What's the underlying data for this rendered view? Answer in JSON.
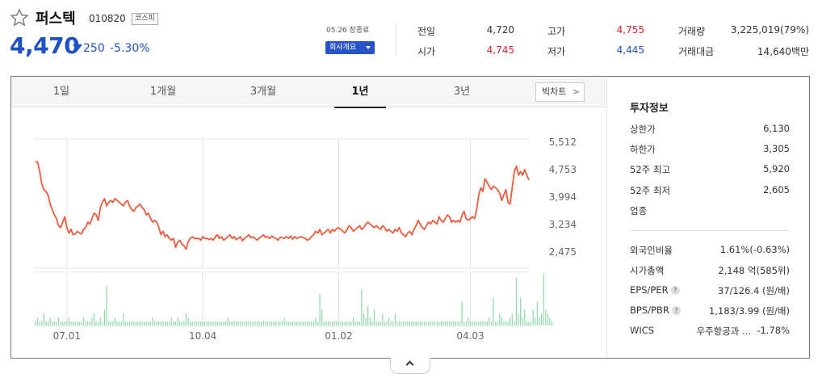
{
  "header": {
    "name": "퍼스텍",
    "code": "010820",
    "market": "코스피",
    "price": "4,470",
    "change": "250",
    "change_pct": "-5.30%",
    "close_label": "05.26 장종료",
    "company_button": "회사개요"
  },
  "quotes": {
    "prev_close_label": "전일",
    "prev_close": "4,720",
    "open_label": "시가",
    "open": "4,745",
    "high_label": "고가",
    "high": "4,755",
    "low_label": "저가",
    "low": "4,445",
    "volume_label": "거래량",
    "volume": "3,225,019(79%)",
    "amount_label": "거래대금",
    "amount": "14,640백만"
  },
  "tabs": [
    "1일",
    "1개월",
    "3개월",
    "1년",
    "3년"
  ],
  "active_tab": "1년",
  "bigchart_label": "빅차트",
  "investment": {
    "title": "투자정보",
    "upper_limit_label": "상한가",
    "upper_limit": "6,130",
    "lower_limit_label": "하한가",
    "lower_limit": "3,305",
    "high52_label": "52주 최고",
    "high52": "5,920",
    "low52_label": "52주 최저",
    "low52": "2,605",
    "sector_label": "업종",
    "foreign_label": "외국인비율",
    "foreign": "1.61%(-0.63%)",
    "mcap_label": "시가총액",
    "mcap": "2,148 억(585위)",
    "eps_label": "EPS/PER",
    "eps": "37/126.4 (원/배)",
    "bps_label": "BPS/PBR",
    "bps": "1,183/3.99 (원/배)",
    "wics_label": "WICS",
    "wics_sector": "우주항공과 ...",
    "wics_change": "-1.78%",
    "help_glyph": "?"
  },
  "colors": {
    "line": "#f05a3c",
    "volume": "#8fd9a8",
    "up": "#e0242c",
    "down": "#1e50c8"
  },
  "chart_data": {
    "type": "line",
    "y_ticks": [
      "5,512",
      "4,753",
      "3,994",
      "3,234",
      "2,475"
    ],
    "y_tick_values": [
      5512,
      4753,
      3994,
      3234,
      2475
    ],
    "x_ticks": [
      "07.01",
      "10.04",
      "01.02",
      "04.03"
    ],
    "x_tick_index": [
      15,
      80,
      145,
      208
    ],
    "price": [
      4980,
      4950,
      4700,
      4350,
      4200,
      4150,
      4050,
      3800,
      3650,
      3500,
      3400,
      3200,
      3150,
      3300,
      3450,
      3150,
      3000,
      3100,
      2950,
      2980,
      3050,
      3000,
      2980,
      3100,
      3150,
      3300,
      3250,
      3400,
      3550,
      3500,
      3350,
      3700,
      3850,
      3950,
      3750,
      3850,
      3900,
      3850,
      3950,
      3900,
      3850,
      3800,
      3750,
      3850,
      3900,
      3750,
      3650,
      3600,
      3700,
      3750,
      3800,
      3700,
      3650,
      3500,
      3550,
      3400,
      3300,
      3350,
      3300,
      3150,
      2950,
      3050,
      2900,
      2950,
      2850,
      2800,
      2850,
      2600,
      2750,
      2800,
      2700,
      2650,
      2550,
      2750,
      2850,
      2900,
      2850,
      2850,
      2850,
      2800,
      2900,
      2850,
      2850,
      2820,
      2850,
      2800,
      2900,
      2950,
      2850,
      2900,
      2800,
      2850,
      2900,
      2950,
      2850,
      2900,
      2820,
      2850,
      2900,
      2780,
      2850,
      2900,
      2950,
      2870,
      2900,
      2850,
      2800,
      2860,
      2900,
      2950,
      2880,
      2900,
      2850,
      2920,
      2880,
      2850,
      2800,
      2880,
      2870,
      2850,
      2900,
      2850,
      2920,
      2830,
      2900,
      2850,
      2880,
      2900,
      2870,
      2850,
      2800,
      2830,
      2900,
      2950,
      3050,
      3000,
      3100,
      2950,
      3000,
      3050,
      3100,
      3000,
      3100,
      3050,
      3120,
      3150,
      3100,
      3050,
      3000,
      3100,
      3200,
      3150,
      3050,
      3100,
      3150,
      3200,
      3100,
      3150,
      3250,
      3300,
      3250,
      3200,
      3150,
      3200,
      3150,
      3100,
      3200,
      3150,
      3050,
      3100,
      3050,
      3000,
      3100,
      3050,
      3150,
      3000,
      2950,
      2900,
      3000,
      3050,
      2950,
      3100,
      3200,
      3350,
      3250,
      3150,
      3100,
      3200,
      3300,
      3250,
      3350,
      3300,
      3250,
      3450,
      3350,
      3300,
      3400,
      3500,
      3450,
      3300,
      3350,
      3300,
      3350,
      3300,
      3500,
      3600,
      3400,
      3350,
      3400,
      3450,
      3400,
      3650,
      4050,
      4250,
      4150,
      4500,
      4400,
      4300,
      4200,
      4300,
      4250,
      4200,
      4100,
      3900,
      4050,
      4200,
      3850,
      3800,
      4250,
      4700,
      4850,
      4600,
      4700,
      4600,
      4750,
      4600,
      4470
    ],
    "volume": [
      1,
      2,
      1,
      1,
      3,
      1,
      1,
      2,
      1,
      1,
      1,
      2,
      1,
      1,
      1,
      1,
      2,
      1,
      1,
      1,
      1,
      1,
      1,
      2,
      1,
      1,
      1,
      2,
      3,
      1,
      1,
      2,
      1,
      4,
      10,
      1,
      1,
      1,
      2,
      1,
      1,
      1,
      3,
      1,
      1,
      1,
      1,
      1,
      1,
      1,
      1,
      1,
      1,
      1,
      1,
      1,
      2,
      1,
      1,
      1,
      1,
      1,
      1,
      1,
      1,
      2,
      1,
      1,
      2,
      1,
      1,
      1,
      3,
      2,
      1,
      1,
      1,
      1,
      1,
      1,
      1,
      1,
      1,
      1,
      1,
      1,
      1,
      1,
      1,
      1,
      1,
      1,
      2,
      1,
      1,
      1,
      1,
      1,
      1,
      1,
      1,
      1,
      1,
      1,
      1,
      1,
      1,
      1,
      1,
      1,
      1,
      1,
      1,
      1,
      1,
      1,
      1,
      1,
      1,
      2,
      1,
      1,
      1,
      1,
      1,
      1,
      1,
      1,
      1,
      1,
      1,
      1,
      1,
      1,
      2,
      1,
      8,
      4,
      1,
      1,
      1,
      1,
      1,
      1,
      1,
      1,
      1,
      1,
      1,
      1,
      1,
      1,
      2,
      1,
      1,
      1,
      9,
      3,
      2,
      5,
      2,
      1,
      4,
      1,
      1,
      1,
      3,
      1,
      1,
      2,
      1,
      1,
      3,
      1,
      1,
      1,
      1,
      1,
      1,
      1,
      1,
      1,
      1,
      1,
      1,
      1,
      1,
      1,
      1,
      1,
      1,
      1,
      1,
      1,
      1,
      1,
      1,
      1,
      1,
      1,
      1,
      1,
      1,
      1,
      6,
      1,
      1,
      2,
      1,
      1,
      1,
      1,
      1,
      1,
      1,
      1,
      1,
      2,
      1,
      7,
      1,
      1,
      3,
      2,
      1,
      1,
      1,
      2,
      3,
      1,
      12,
      3,
      7,
      2,
      4,
      1,
      1,
      1,
      4,
      2,
      6,
      2,
      3,
      13,
      4,
      3,
      2,
      1
    ],
    "volume_max": 13
  }
}
